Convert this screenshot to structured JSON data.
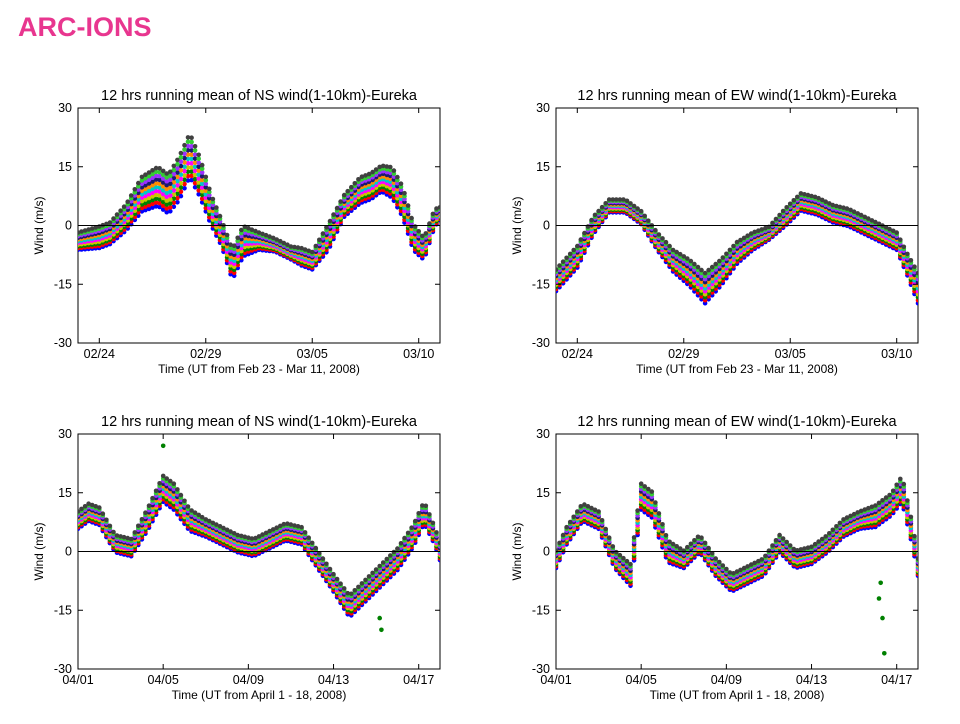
{
  "slide": {
    "title": "ARC-IONS",
    "title_color": "#e8368f"
  },
  "series_colors": [
    "#0000ff",
    "#ff0000",
    "#008000",
    "#c8c800",
    "#ff00ff",
    "#00c8c8",
    "#ff8c00",
    "#1a1a6e",
    "#9b30ff",
    "#32cd32",
    "#404040"
  ],
  "chart_data": [
    {
      "type": "scatter",
      "title": "12 hrs running mean of NS wind(1-10km)-Eureka",
      "xlabel": "Time (UT from Feb 23 - Mar 11, 2008)",
      "ylabel": "Wind (m/s)",
      "xlim": [
        "2008-02-23",
        "2008-03-11"
      ],
      "ylim": [
        -30,
        30
      ],
      "yticks": [
        -30,
        -15,
        0,
        15,
        30
      ],
      "xticks": [
        {
          "date": "2008-02-24",
          "label": "02/24"
        },
        {
          "date": "2008-02-29",
          "label": "02/29"
        },
        {
          "date": "2008-03-05",
          "label": "03/05"
        },
        {
          "date": "2008-03-10",
          "label": "03/10"
        }
      ],
      "grid": false,
      "zero_line": true,
      "series_count": 11,
      "mean_curve": {
        "x": [
          "2008-02-23 00:00",
          "2008-02-24 00:00",
          "2008-02-24 12:00",
          "2008-02-25 06:00",
          "2008-02-26 00:00",
          "2008-02-26 18:00",
          "2008-02-27 06:00",
          "2008-02-27 18:00",
          "2008-02-28 06:00",
          "2008-02-28 18:00",
          "2008-02-29 06:00",
          "2008-02-29 18:00",
          "2008-03-01 06:00",
          "2008-03-01 18:00",
          "2008-03-02 12:00",
          "2008-03-03 06:00",
          "2008-03-04 00:00",
          "2008-03-04 12:00",
          "2008-03-05 00:00",
          "2008-03-05 18:00",
          "2008-03-06 12:00",
          "2008-03-07 06:00",
          "2008-03-07 18:00",
          "2008-03-08 06:00",
          "2008-03-08 18:00",
          "2008-03-09 06:00",
          "2008-03-09 18:00",
          "2008-03-10 06:00",
          "2008-03-10 18:00",
          "2008-03-11 00:00"
        ],
        "y": [
          -4,
          -3,
          -2,
          2,
          8,
          10,
          8,
          12,
          18,
          12,
          4,
          -2,
          -10,
          -4,
          -4,
          -5,
          -7,
          -8,
          -9,
          -3,
          5,
          9,
          10,
          12,
          11,
          6,
          -3,
          -6,
          2,
          3
        ]
      },
      "series_spread": {
        "y": [
          4,
          5,
          5,
          6,
          8,
          9,
          9,
          10,
          10,
          9,
          7,
          6,
          7,
          7,
          4,
          3,
          3,
          4,
          4,
          6,
          5,
          6,
          6,
          6,
          7,
          7,
          6,
          5,
          4,
          3
        ]
      }
    },
    {
      "type": "scatter",
      "title": "12 hrs running mean of EW wind(1-10km)-Eureka",
      "xlabel": "Time (UT from Feb 23 - Mar 11, 2008)",
      "ylabel": "Wind (m/s)",
      "xlim": [
        "2008-02-23",
        "2008-03-11"
      ],
      "ylim": [
        -30,
        30
      ],
      "yticks": [
        -30,
        -15,
        0,
        15,
        30
      ],
      "xticks": [
        {
          "date": "2008-02-24",
          "label": "02/24"
        },
        {
          "date": "2008-02-29",
          "label": "02/29"
        },
        {
          "date": "2008-03-05",
          "label": "03/05"
        },
        {
          "date": "2008-03-10",
          "label": "03/10"
        }
      ],
      "grid": false,
      "zero_line": true,
      "series_count": 11,
      "mean_curve": {
        "x": [
          "2008-02-23 00:00",
          "2008-02-24 00:00",
          "2008-02-24 18:00",
          "2008-02-25 12:00",
          "2008-02-26 06:00",
          "2008-02-27 00:00",
          "2008-02-27 18:00",
          "2008-02-28 12:00",
          "2008-02-29 06:00",
          "2008-03-01 00:00",
          "2008-03-01 18:00",
          "2008-03-02 12:00",
          "2008-03-03 06:00",
          "2008-03-04 00:00",
          "2008-03-04 18:00",
          "2008-03-05 12:00",
          "2008-03-06 06:00",
          "2008-03-07 00:00",
          "2008-03-07 18:00",
          "2008-03-08 12:00",
          "2008-03-09 06:00",
          "2008-03-10 00:00",
          "2008-03-10 12:00",
          "2008-03-11 00:00"
        ],
        "y": [
          -14,
          -8,
          0,
          5,
          5,
          2,
          -4,
          -9,
          -12,
          -16,
          -12,
          -7,
          -4,
          -2,
          2,
          6,
          5,
          3,
          2,
          0,
          -2,
          -4,
          -10,
          -16
        ]
      },
      "series_spread": {
        "y": [
          5,
          5,
          4,
          3,
          3,
          3,
          4,
          5,
          6,
          7,
          6,
          5,
          4,
          3,
          4,
          4,
          4,
          4,
          4,
          4,
          4,
          4,
          5,
          7
        ]
      }
    },
    {
      "type": "scatter",
      "title": "12 hrs running mean of NS wind(1-10km)-Eureka",
      "xlabel": "Time (UT from April 1 - 18, 2008)",
      "ylabel": "Wind (m/s)",
      "xlim": [
        "2008-04-01",
        "2008-04-18"
      ],
      "ylim": [
        -30,
        30
      ],
      "yticks": [
        -30,
        -15,
        0,
        15,
        30
      ],
      "xticks": [
        {
          "date": "2008-04-01",
          "label": "04/01"
        },
        {
          "date": "2008-04-05",
          "label": "04/05"
        },
        {
          "date": "2008-04-09",
          "label": "04/09"
        },
        {
          "date": "2008-04-13",
          "label": "04/13"
        },
        {
          "date": "2008-04-17",
          "label": "04/17"
        }
      ],
      "grid": false,
      "zero_line": true,
      "series_count": 11,
      "mean_curve": {
        "x": [
          "2008-04-01 00:00",
          "2008-04-01 12:00",
          "2008-04-02 00:00",
          "2008-04-02 18:00",
          "2008-04-03 12:00",
          "2008-04-04 06:00",
          "2008-04-05 00:00",
          "2008-04-05 12:00",
          "2008-04-06 06:00",
          "2008-04-07 00:00",
          "2008-04-07 18:00",
          "2008-04-08 12:00",
          "2008-04-09 06:00",
          "2008-04-10 00:00",
          "2008-04-10 18:00",
          "2008-04-11 12:00",
          "2008-04-12 06:00",
          "2008-04-13 00:00",
          "2008-04-13 18:00",
          "2008-04-14 12:00",
          "2008-04-15 06:00",
          "2008-04-16 00:00",
          "2008-04-16 18:00",
          "2008-04-17 06:00",
          "2008-04-17 18:00",
          "2008-04-18 00:00"
        ],
        "y": [
          8,
          10,
          9,
          2,
          1,
          8,
          16,
          14,
          8,
          6,
          4,
          2,
          1,
          3,
          5,
          4,
          -2,
          -8,
          -14,
          -10,
          -6,
          -2,
          4,
          10,
          4,
          0
        ]
      },
      "series_spread": {
        "y": [
          4,
          4,
          4,
          4,
          4,
          5,
          6,
          6,
          5,
          4,
          4,
          4,
          4,
          4,
          4,
          4,
          4,
          4,
          5,
          5,
          5,
          5,
          5,
          5,
          4,
          4
        ]
      },
      "outliers": [
        {
          "x": "2008-04-05 00:00",
          "y": 27
        },
        {
          "x": "2008-04-15 06:00",
          "y": -20
        },
        {
          "x": "2008-04-15 04:00",
          "y": -17
        }
      ]
    },
    {
      "type": "scatter",
      "title": "12 hrs running mean of EW wind(1-10km)-Eureka",
      "xlabel": "Time (UT from April 1 - 18, 2008)",
      "ylabel": "Wind (m/s)",
      "xlim": [
        "2008-04-01",
        "2008-04-18"
      ],
      "ylim": [
        -30,
        30
      ],
      "yticks": [
        -30,
        -15,
        0,
        15,
        30
      ],
      "xticks": [
        {
          "date": "2008-04-01",
          "label": "04/01"
        },
        {
          "date": "2008-04-05",
          "label": "04/05"
        },
        {
          "date": "2008-04-09",
          "label": "04/09"
        },
        {
          "date": "2008-04-13",
          "label": "04/13"
        },
        {
          "date": "2008-04-17",
          "label": "04/17"
        }
      ],
      "grid": false,
      "zero_line": true,
      "series_count": 11,
      "mean_curve": {
        "x": [
          "2008-04-01 00:00",
          "2008-04-01 12:00",
          "2008-04-02 06:00",
          "2008-04-03 00:00",
          "2008-04-03 18:00",
          "2008-04-04 12:00",
          "2008-04-05 00:00",
          "2008-04-05 12:00",
          "2008-04-06 06:00",
          "2008-04-07 00:00",
          "2008-04-07 18:00",
          "2008-04-08 12:00",
          "2008-04-09 06:00",
          "2008-04-10 00:00",
          "2008-04-10 18:00",
          "2008-04-11 12:00",
          "2008-04-12 06:00",
          "2008-04-13 00:00",
          "2008-04-13 18:00",
          "2008-04-14 12:00",
          "2008-04-15 06:00",
          "2008-04-16 00:00",
          "2008-04-16 18:00",
          "2008-04-17 06:00",
          "2008-04-17 18:00",
          "2008-04-18 00:00"
        ],
        "y": [
          -2,
          4,
          10,
          8,
          -2,
          -6,
          14,
          12,
          0,
          -2,
          2,
          -4,
          -8,
          -6,
          -4,
          2,
          -2,
          -1,
          2,
          6,
          8,
          9,
          12,
          16,
          4,
          -4
        ]
      },
      "series_spread": {
        "y": [
          4,
          4,
          4,
          4,
          4,
          5,
          6,
          6,
          5,
          4,
          4,
          4,
          4,
          4,
          4,
          4,
          4,
          4,
          4,
          4,
          4,
          5,
          5,
          6,
          5,
          4
        ]
      },
      "outliers": [
        {
          "x": "2008-04-16 10:00",
          "y": -26
        },
        {
          "x": "2008-04-16 08:00",
          "y": -17
        },
        {
          "x": "2008-04-16 04:00",
          "y": -12
        },
        {
          "x": "2008-04-16 06:00",
          "y": -8
        }
      ]
    }
  ]
}
